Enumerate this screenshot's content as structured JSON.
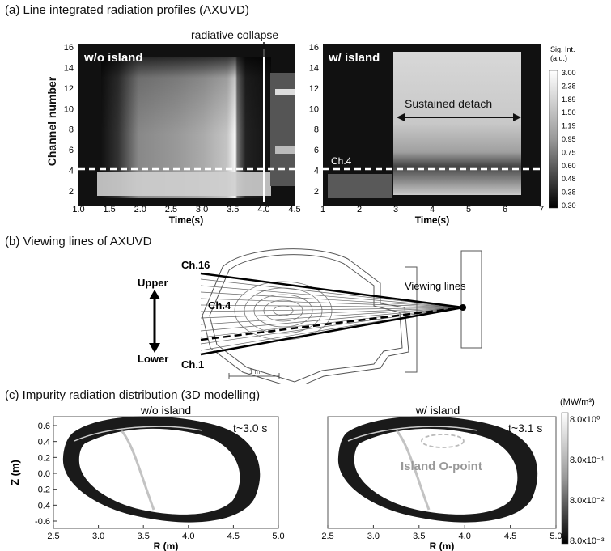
{
  "panel_a": {
    "title": "(a) Line integrated radiation profiles (AXUVD)",
    "ylabel": "Channel number",
    "left": {
      "label": "w/o island",
      "annotation": "radiative collapse",
      "xlabel": "Time(s)",
      "xticks": [
        "1.0",
        "1.5",
        "2.0",
        "2.5",
        "3.0",
        "3.5",
        "4.0",
        "4.5"
      ],
      "yticks": [
        "2",
        "4",
        "6",
        "8",
        "10",
        "12",
        "14",
        "16"
      ]
    },
    "right": {
      "label": "w/ island",
      "annotation": "Sustained detach",
      "ch4_label": "Ch.4",
      "xlabel": "Time(s)",
      "xticks": [
        "1",
        "2",
        "3",
        "4",
        "5",
        "6",
        "7"
      ],
      "yticks": [
        "2",
        "4",
        "6",
        "8",
        "10",
        "12",
        "14",
        "16"
      ]
    },
    "colorbar": {
      "title_line1": "Sig. Int.",
      "title_line2": "(a.u.)",
      "ticks": [
        "3.00",
        "2.38",
        "1.89",
        "1.50",
        "1.19",
        "0.95",
        "0.75",
        "0.60",
        "0.48",
        "0.38",
        "0.30"
      ]
    }
  },
  "panel_b": {
    "title": "(b) Viewing lines of AXUVD",
    "ch16": "Ch.16",
    "ch4": "Ch.4",
    "ch1": "Ch.1",
    "upper": "Upper",
    "lower": "Lower",
    "viewing_lines": "Viewing lines",
    "scale": "1 m"
  },
  "panel_c": {
    "title": "(c) Impurity radiation distribution (3D modelling)",
    "ylabel": "Z (m)",
    "left": {
      "label": "w/o island",
      "time": "t~3.0 s",
      "xlabel": "R (m)",
      "xticks": [
        "2.5",
        "3.0",
        "3.5",
        "4.0",
        "4.5",
        "5.0"
      ],
      "yticks": [
        "0.6",
        "0.4",
        "0.2",
        "0.0",
        "-0.2",
        "-0.4",
        "-0.6"
      ]
    },
    "right": {
      "label": "w/ island",
      "time": "t~3.1 s",
      "island": "Island O-point",
      "xlabel": "R (m)",
      "xticks": [
        "2.5",
        "3.0",
        "3.5",
        "4.0",
        "4.5",
        "5.0"
      ]
    },
    "colorbar": {
      "unit": "(MW/m³)",
      "ticks": [
        "8.0x10⁰",
        "8.0x10⁻¹",
        "8.0x10⁻²",
        "8.0x10⁻³"
      ]
    }
  }
}
